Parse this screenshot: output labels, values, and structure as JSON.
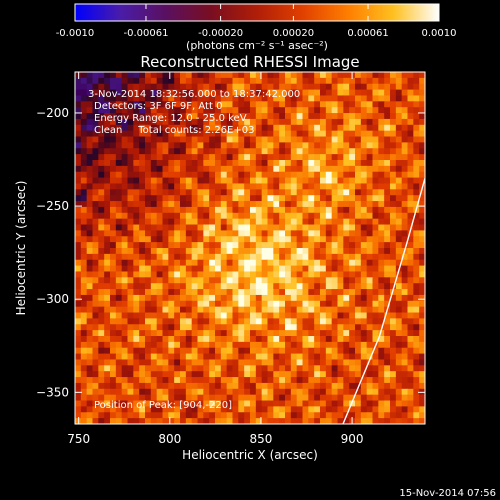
{
  "chart_data": {
    "type": "heatmap",
    "title": "Reconstructed RHESSI Image",
    "xlabel": "Heliocentric X (arcsec)",
    "ylabel": "Heliocentric Y (arcsec)",
    "xlim": [
      748,
      940
    ],
    "ylim": [
      -367,
      -178
    ],
    "x_ticks": [
      750,
      800,
      850,
      900
    ],
    "y_ticks": [
      -200,
      -250,
      -300,
      -350
    ],
    "colorbar": {
      "range": [
        -0.001,
        0.001
      ],
      "tick_values": [
        -0.001,
        -0.00061,
        -0.0002,
        0.0002,
        0.00061,
        0.001
      ],
      "tick_labels": [
        "-0.0010",
        "-0.00061",
        "-0.00020",
        "0.00020",
        "0.00061",
        "0.0010"
      ],
      "unit_label": "(photons cm⁻² s⁻¹ asec⁻²)",
      "colors": [
        "#0000ff",
        "#4a1ca8",
        "#5a1060",
        "#7a0e20",
        "#b01e08",
        "#e04000",
        "#ff7e00",
        "#ffc020",
        "#ffffff"
      ]
    },
    "info": {
      "time_range": "3-Nov-2014 18:32:56.000 to 18:37:42.000",
      "detectors": "Detectors: 3F 6F 9F, Att 0",
      "energy": "Energy Range: 12.0 - 25.0 keV",
      "clean": "Clean     Total counts: 2.26E+03",
      "peak": "Position of Peak: [904,-220]"
    },
    "peak_position": [
      904,
      -220
    ],
    "limb_arc": {
      "description_points": [
        [
          895,
          -367
        ],
        [
          915,
          -320
        ],
        [
          930,
          -270
        ],
        [
          940,
          -235
        ]
      ]
    },
    "timestamp": "15-Nov-2014 07:56"
  }
}
